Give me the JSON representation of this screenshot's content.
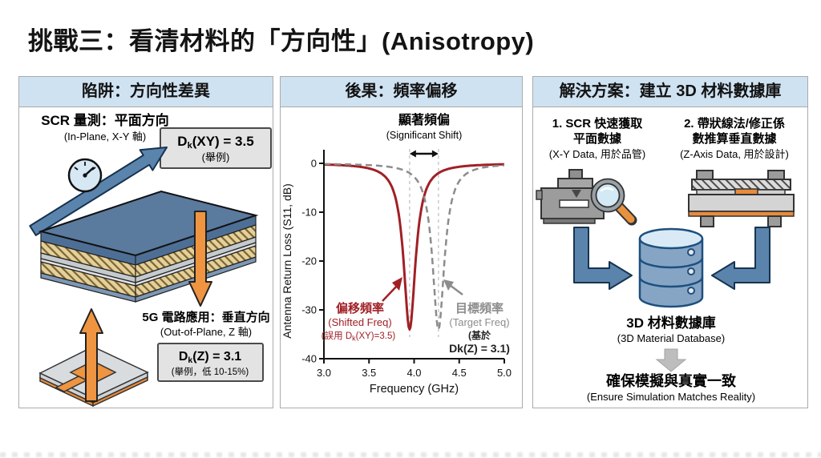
{
  "title": "挑戰三：看清材料的「方向性」(Anisotropy)",
  "colors": {
    "header_bg": "#cfe2f1",
    "accent_blue": "#5b84ad",
    "accent_orange": "#ef9441",
    "shifted_red": "#a02025",
    "target_gray": "#8c8c8c",
    "slab_top_blue": "#5a7a9e",
    "database_blue": "#86a5c5"
  },
  "panels": {
    "trap": {
      "header": "陷阱：方向性差異",
      "in_plane": {
        "title": "SCR 量測：平面方向",
        "subtitle": "(In-Plane, X-Y 軸)"
      },
      "dk_xy": {
        "pre": "D",
        "sub": "k",
        "post": "(XY) = 3.5",
        "note": "(舉例)"
      },
      "out_plane": {
        "title": "5G 電路應用：垂直方向",
        "subtitle": "(Out-of-Plane, Z 軸)"
      },
      "dk_z": {
        "pre": "D",
        "sub": "k",
        "post": "(Z) = 3.1",
        "note": "(舉例，低 10-15%)"
      }
    },
    "consequence": {
      "header": "後果：頻率偏移",
      "shift_label": {
        "title": "顯著頻偏",
        "subtitle": "(Significant Shift)"
      },
      "shifted_annotation": {
        "line1": "偏移頻率",
        "line2": "(Shifted Freq)",
        "line3_pre": "(誤用 D",
        "line3_sub": "k",
        "line3_post": "(XY)=3.5)"
      },
      "target_annotation": {
        "line1": "目標頻率",
        "line2": "(Target Freq)",
        "line3": "(基於",
        "line4": "Dk(Z) = 3.1)"
      }
    },
    "solution": {
      "header": "解決方案：建立 3D 材料數據庫",
      "step1": {
        "title1": "1. SCR 快速獲取",
        "title2": "平面數據",
        "subtitle": "(X-Y Data, 用於品管)"
      },
      "step2": {
        "title1": "2. 帶狀線法/修正係",
        "title2": "數推算垂直數據",
        "subtitle": "(Z-Axis Data, 用於設計)"
      },
      "database": {
        "title": "3D 材料數據庫",
        "subtitle": "(3D Material Database)"
      },
      "outcome": {
        "title": "確保模擬與真實一致",
        "subtitle": "(Ensure Simulation Matches Reality)"
      }
    }
  },
  "chart_data": {
    "type": "line",
    "title": "",
    "xlabel": "Frequency (GHz)",
    "ylabel": "Antenna Return Loss (S11, dB)",
    "xlim": [
      3.0,
      5.0
    ],
    "ylim": [
      -40,
      0
    ],
    "xticks": [
      3.0,
      3.5,
      4.0,
      4.5,
      5.0
    ],
    "yticks": [
      0,
      -10,
      -20,
      -30,
      -40
    ],
    "grid": false,
    "legend": "annotations",
    "series": [
      {
        "name": "偏移頻率 (Shifted Freq)",
        "color": "#a02025",
        "style": "solid",
        "resonance_ghz": 3.95,
        "min_db": -34,
        "half_width_ghz": 0.08
      },
      {
        "name": "目標頻率 (Target Freq)",
        "color": "#8c8c8c",
        "style": "dashed",
        "resonance_ghz": 4.27,
        "min_db": -34,
        "half_width_ghz": 0.08
      }
    ],
    "shift_markers_ghz": [
      3.95,
      4.27
    ]
  }
}
